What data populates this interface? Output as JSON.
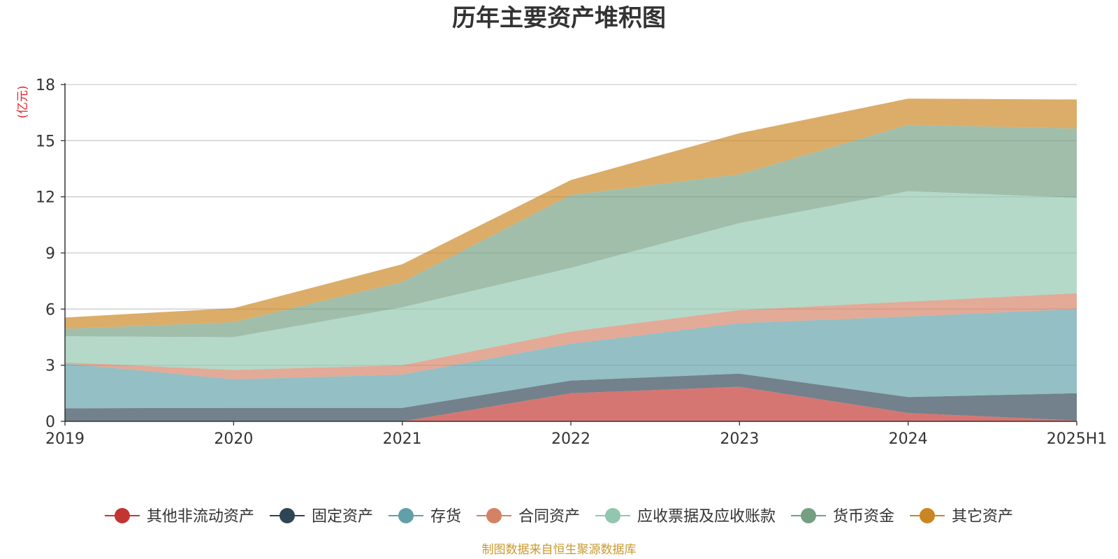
{
  "chart_data": {
    "type": "area",
    "stacked": true,
    "title": "历年主要资产堆积图",
    "y_unit_label": "(亿元)",
    "categories": [
      "2019",
      "2020",
      "2021",
      "2022",
      "2023",
      "2024",
      "2025H1"
    ],
    "ylim": [
      0,
      18
    ],
    "yticks": [
      "0",
      "3",
      "6",
      "9",
      "12",
      "15",
      "18"
    ],
    "grid": true,
    "legend_position": "bottom",
    "series": [
      {
        "name": "其他非流动资产",
        "color": "#c23531",
        "values": [
          0.0,
          0.0,
          0.0,
          1.5,
          1.85,
          0.45,
          0.05
        ]
      },
      {
        "name": "固定资产",
        "color": "#2f4554",
        "values": [
          0.7,
          0.72,
          0.72,
          0.68,
          0.7,
          0.85,
          1.45
        ]
      },
      {
        "name": "存货",
        "color": "#61a0a8",
        "values": [
          2.4,
          1.53,
          1.78,
          1.97,
          2.7,
          4.3,
          4.5
        ]
      },
      {
        "name": "合同资产",
        "color": "#d48265",
        "values": [
          0.05,
          0.5,
          0.5,
          0.65,
          0.7,
          0.8,
          0.85
        ]
      },
      {
        "name": "应收票据及应收账款",
        "color": "#91c7ae",
        "values": [
          1.4,
          1.75,
          3.1,
          3.4,
          4.65,
          5.9,
          5.1
        ]
      },
      {
        "name": "货币资金",
        "color": "#749f83",
        "values": [
          0.4,
          0.8,
          1.35,
          3.9,
          2.6,
          3.55,
          3.7
        ]
      },
      {
        "name": "其它资产",
        "color": "#ca8622",
        "values": [
          0.6,
          0.75,
          0.95,
          0.8,
          2.2,
          1.4,
          1.55
        ]
      }
    ],
    "source_note": "制图数据来自恒生聚源数据库"
  },
  "colors": {
    "unit_label": "#e8232a",
    "source_note": "#c99a2e",
    "grid": "#cccccc",
    "axis": "#333333"
  }
}
